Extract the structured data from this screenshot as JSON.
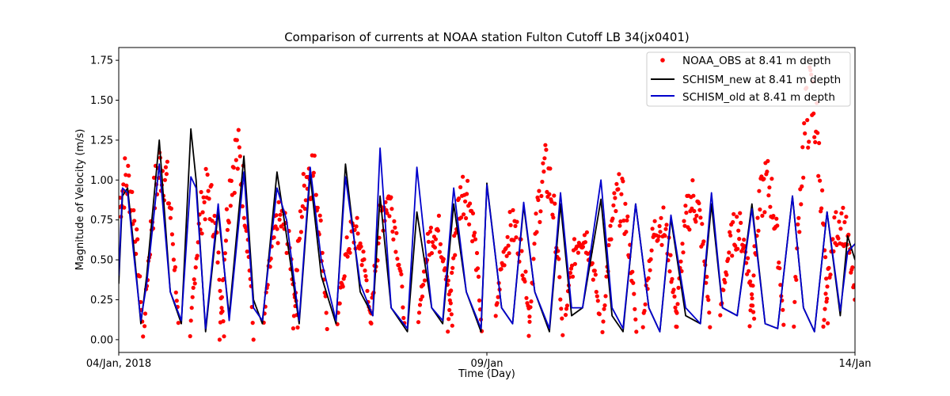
{
  "chart_data": {
    "type": "line",
    "title": "Comparison of currents at NOAA station Fulton Cutoff LB 34(jx0401)",
    "xlabel": "Time (Day)",
    "ylabel": "Magnitude of Velocity (m/s)",
    "xlim": [
      "2018-01-04",
      "2018-01-14"
    ],
    "ylim": [
      -0.08,
      1.83
    ],
    "x_ticks": [
      {
        "date": "2018-01-04",
        "label": "04/Jan, 2018"
      },
      {
        "date": "2018-01-09",
        "label": "09/Jan"
      },
      {
        "date": "2018-01-14",
        "label": "14/Jan"
      }
    ],
    "y_ticks": [
      0.0,
      0.25,
      0.5,
      0.75,
      1.0,
      1.25,
      1.5,
      1.75
    ],
    "y_tick_labels": [
      "0.00",
      "0.25",
      "0.50",
      "0.75",
      "1.00",
      "1.25",
      "1.50",
      "1.75"
    ],
    "grid": false,
    "legend_position": "top-right",
    "series": [
      {
        "name": "NOAA_OBS at 8.41 m depth",
        "style": "scatter",
        "color": "#ff0000",
        "peak_days": [
          0.1,
          0.58,
          1.2,
          1.6,
          2.2,
          2.6,
          3.2,
          3.65,
          4.3,
          4.7,
          5.35,
          5.8,
          6.3,
          6.8,
          7.35,
          7.8,
          8.4,
          8.8,
          9.4,
          9.8
        ],
        "peak_values": [
          1.08,
          1.17,
          0.98,
          1.24,
          0.8,
          1.16,
          0.72,
          0.95,
          0.75,
          1.02,
          0.75,
          1.12,
          0.72,
          0.95,
          0.8,
          0.95,
          0.75,
          1.05,
          1.6,
          0.8
        ],
        "trough_values": [
          0.02,
          0.1,
          0.02,
          0.0,
          0.1,
          0.08,
          0.1,
          0.1,
          0.1,
          0.05,
          0.15,
          0.03,
          0.15,
          0.05,
          0.1,
          0.1,
          0.15,
          0.1,
          0.1,
          0.08
        ]
      },
      {
        "name": "SCHISM_new at 8.41 m depth",
        "style": "line",
        "color": "#000000",
        "x": [
          0,
          0.05,
          0.12,
          0.2,
          0.3,
          0.38,
          0.55,
          0.7,
          0.85,
          0.98,
          1.05,
          1.18,
          1.35,
          1.5,
          1.7,
          1.83,
          1.95,
          2.15,
          2.28,
          2.45,
          2.6,
          2.75,
          2.95,
          3.08,
          3.28,
          3.45,
          3.55,
          3.7,
          3.92,
          4.05,
          4.25,
          4.4,
          4.55,
          4.72,
          4.92,
          5.0,
          5.2,
          5.35,
          5.5,
          5.65,
          5.85,
          6.0,
          6.15,
          6.3,
          6.55,
          6.7,
          6.85,
          7.02,
          7.2,
          7.35,
          7.5,
          7.7,
          7.9,
          8.05,
          8.2,
          8.4,
          8.6,
          8.78,
          8.95,
          9.15,
          9.3,
          9.45,
          9.62,
          9.8,
          9.9,
          10.0
        ],
        "y": [
          0.35,
          0.9,
          0.95,
          0.6,
          0.1,
          0.4,
          1.25,
          0.3,
          0.1,
          1.32,
          1.0,
          0.05,
          0.8,
          0.15,
          1.15,
          0.25,
          0.1,
          1.05,
          0.65,
          0.1,
          1.03,
          0.4,
          0.1,
          1.1,
          0.3,
          0.15,
          0.9,
          0.2,
          0.05,
          0.8,
          0.2,
          0.1,
          0.85,
          0.3,
          0.05,
          0.98,
          0.2,
          0.1,
          0.84,
          0.3,
          0.05,
          0.85,
          0.15,
          0.2,
          0.88,
          0.15,
          0.05,
          0.85,
          0.2,
          0.05,
          0.76,
          0.15,
          0.1,
          0.85,
          0.2,
          0.15,
          0.85,
          0.1,
          0.07,
          0.9,
          0.2,
          0.05,
          0.8,
          0.15,
          0.65,
          0.5
        ]
      },
      {
        "name": "SCHISM_old at 8.41 m depth",
        "style": "line",
        "color": "#0000cc",
        "x": [
          0,
          0.05,
          0.12,
          0.2,
          0.3,
          0.38,
          0.55,
          0.7,
          0.85,
          0.98,
          1.05,
          1.18,
          1.35,
          1.5,
          1.7,
          1.83,
          1.95,
          2.15,
          2.28,
          2.45,
          2.6,
          2.75,
          2.95,
          3.08,
          3.28,
          3.45,
          3.55,
          3.7,
          3.92,
          4.05,
          4.25,
          4.4,
          4.55,
          4.72,
          4.92,
          5.0,
          5.2,
          5.35,
          5.5,
          5.65,
          5.85,
          6.0,
          6.15,
          6.3,
          6.55,
          6.7,
          6.85,
          7.02,
          7.2,
          7.35,
          7.5,
          7.7,
          7.9,
          8.05,
          8.2,
          8.4,
          8.6,
          8.78,
          8.95,
          9.15,
          9.3,
          9.45,
          9.62,
          9.8,
          9.9,
          10.0
        ],
        "y": [
          0.4,
          0.95,
          0.92,
          0.55,
          0.12,
          0.35,
          1.1,
          0.3,
          0.12,
          1.02,
          0.95,
          0.07,
          0.85,
          0.12,
          1.05,
          0.2,
          0.12,
          0.95,
          0.75,
          0.12,
          1.08,
          0.5,
          0.12,
          1.02,
          0.35,
          0.15,
          1.2,
          0.2,
          0.07,
          1.08,
          0.2,
          0.12,
          0.95,
          0.3,
          0.07,
          0.97,
          0.2,
          0.1,
          0.86,
          0.3,
          0.07,
          0.92,
          0.2,
          0.2,
          1.0,
          0.2,
          0.07,
          0.85,
          0.2,
          0.05,
          0.78,
          0.2,
          0.1,
          0.92,
          0.2,
          0.15,
          0.82,
          0.1,
          0.07,
          0.9,
          0.2,
          0.05,
          0.8,
          0.18,
          0.55,
          0.6
        ]
      }
    ]
  }
}
